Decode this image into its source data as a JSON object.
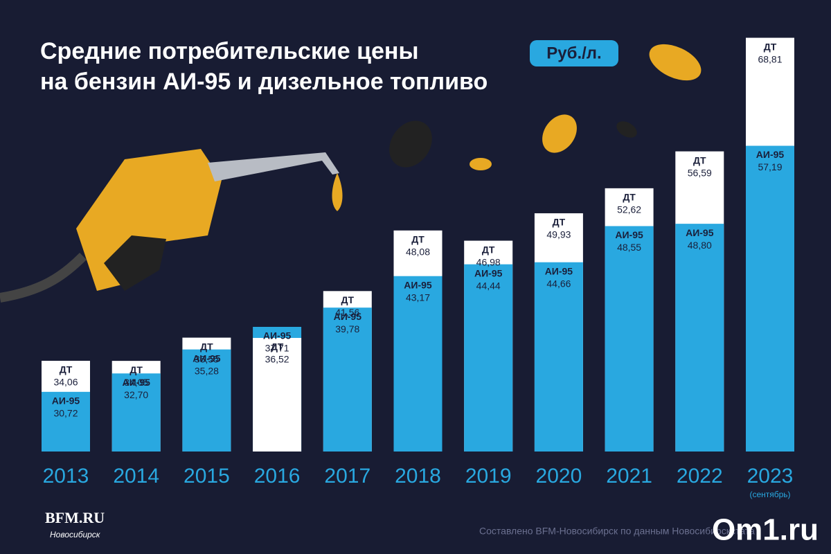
{
  "chart_data": {
    "type": "bar",
    "title_lines": [
      "Средние потребительские цены",
      "на бензин АИ-95 и дизельное топливо"
    ],
    "unit_badge": "Руб./л.",
    "categories": [
      "2013",
      "2014",
      "2015",
      "2016",
      "2017",
      "2018",
      "2019",
      "2020",
      "2021",
      "2022",
      "2023"
    ],
    "category_note": "(сентябрь)",
    "series": [
      {
        "name": "ДТ",
        "color": "#ffffff",
        "text_color": "#1a1f3a",
        "values": [
          34.06,
          34.05,
          36.55,
          36.52,
          41.56,
          48.08,
          46.98,
          49.93,
          52.62,
          56.59,
          68.81
        ],
        "value_labels": [
          "34,06",
          "34,05",
          "36,55",
          "36,52",
          "41,56",
          "48,08",
          "46,98",
          "49,93",
          "52,62",
          "56,59",
          "68,81"
        ]
      },
      {
        "name": "АИ-95",
        "color": "#29a8e0",
        "text_color": "#1a1f3a",
        "values": [
          30.72,
          32.7,
          35.28,
          37.71,
          39.78,
          43.17,
          44.44,
          44.66,
          48.55,
          48.8,
          57.19
        ],
        "value_labels": [
          "30,72",
          "32,70",
          "35,28",
          "37,71",
          "39,78",
          "43,17",
          "44,44",
          "44,66",
          "48,55",
          "48,80",
          "57,19"
        ]
      }
    ],
    "ylim": [
      24.3,
      69
    ],
    "grid": false,
    "brand": "BFM.RU",
    "brand_city": "Новосибирск",
    "source": "Составлено BFM-Новосибирск по данным Новосибирскстата",
    "logo": "Om1.ru"
  }
}
